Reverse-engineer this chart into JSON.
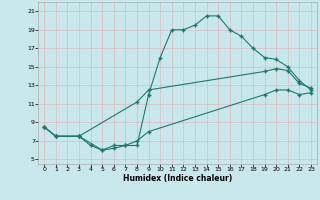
{
  "bg_color": "#c8e8ec",
  "grid_color": "#b0d8dc",
  "line_color": "#1a7a6e",
  "xlabel": "Humidex (Indice chaleur)",
  "xlim": [
    -0.5,
    23.5
  ],
  "ylim": [
    4.5,
    22
  ],
  "xticks": [
    0,
    1,
    2,
    3,
    4,
    5,
    6,
    7,
    8,
    9,
    10,
    11,
    12,
    13,
    14,
    15,
    16,
    17,
    18,
    19,
    20,
    21,
    22,
    23
  ],
  "yticks": [
    5,
    7,
    9,
    11,
    13,
    15,
    17,
    19,
    21
  ],
  "line1_x": [
    0,
    1,
    3,
    4,
    5,
    6,
    7,
    8,
    9,
    10,
    11,
    12,
    13,
    14,
    15,
    16,
    17,
    18,
    19,
    20,
    21,
    22,
    23
  ],
  "line1_y": [
    8.5,
    7.5,
    7.5,
    6.5,
    6.0,
    6.5,
    6.5,
    6.5,
    12.0,
    16.0,
    19.0,
    19.0,
    19.5,
    20.5,
    20.5,
    19.0,
    18.3,
    17.0,
    16.0,
    15.8,
    15.0,
    13.5,
    12.5
  ],
  "line2_x": [
    0,
    1,
    3,
    8,
    9,
    19,
    20,
    21,
    22,
    23
  ],
  "line2_y": [
    8.5,
    7.5,
    7.5,
    11.2,
    12.5,
    14.5,
    14.8,
    14.6,
    13.2,
    12.7
  ],
  "line3_x": [
    0,
    1,
    3,
    5,
    6,
    7,
    8,
    9,
    19,
    20,
    21,
    22,
    23
  ],
  "line3_y": [
    8.5,
    7.5,
    7.5,
    6.0,
    6.2,
    6.5,
    7.0,
    8.0,
    12.0,
    12.5,
    12.5,
    12.0,
    12.2
  ],
  "markersize": 2.5,
  "marker": "+"
}
